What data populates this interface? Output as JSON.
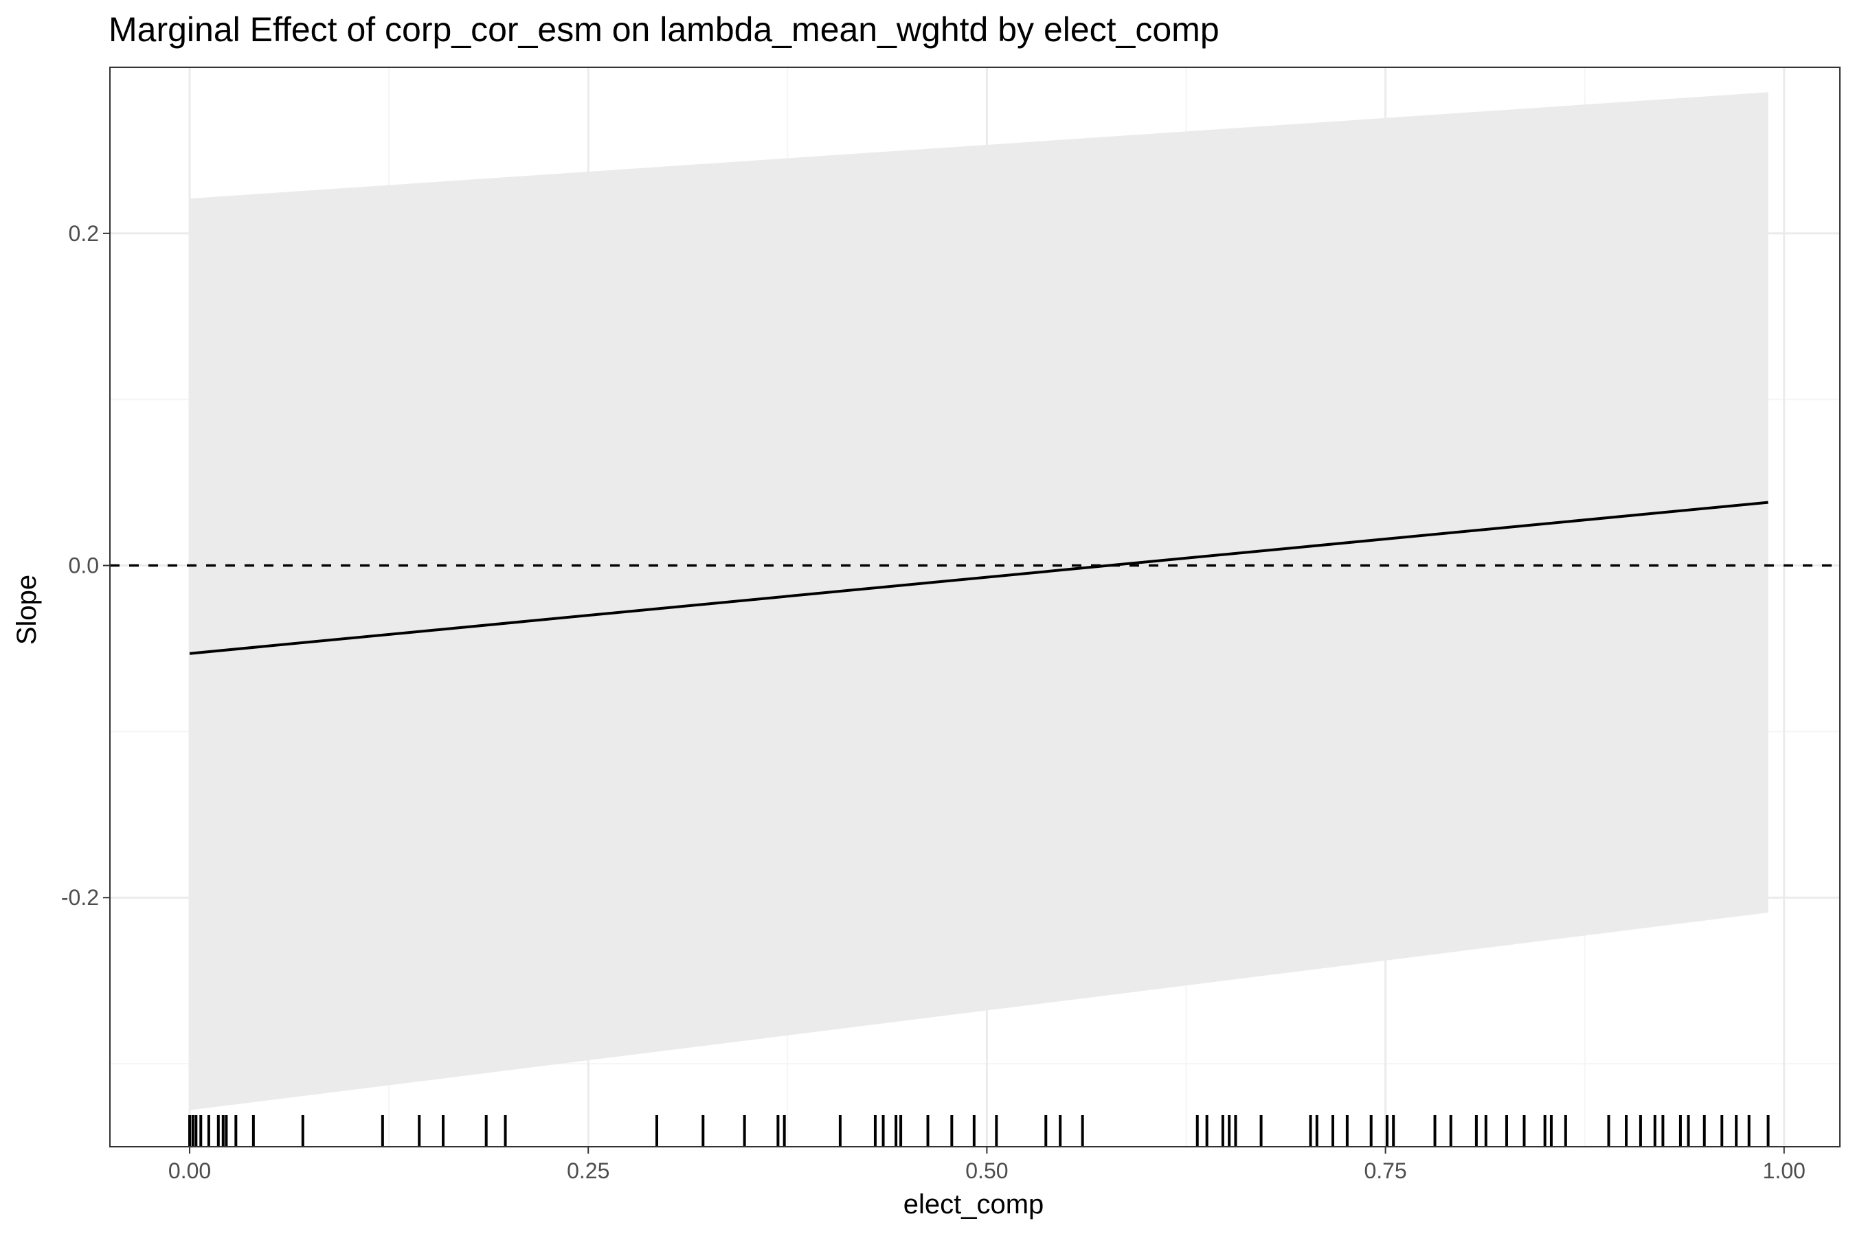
{
  "chart_data": {
    "type": "line",
    "title": "Marginal Effect of corp_cor_esm on lambda_mean_wghtd by elect_comp",
    "xlabel": "elect_comp",
    "ylabel": "Slope",
    "xlim": [
      -0.05,
      1.035
    ],
    "ylim": [
      -0.35,
      0.3
    ],
    "x_ticks": [
      0.0,
      0.25,
      0.5,
      0.75,
      1.0
    ],
    "x_tick_labels": [
      "0.00",
      "0.25",
      "0.50",
      "0.75",
      "1.00"
    ],
    "y_ticks": [
      -0.2,
      0.0,
      0.2
    ],
    "y_tick_labels": [
      "-0.2",
      "0.0",
      "0.2"
    ],
    "grid": true,
    "series": [
      {
        "x": [
          0.0,
          0.99
        ],
        "y": [
          -0.053,
          0.038
        ],
        "lower": [
          -0.328,
          -0.209
        ],
        "upper": [
          0.221,
          0.285
        ]
      }
    ],
    "reference_line": {
      "y": 0,
      "style": "dashed"
    },
    "rug_x": [
      0.0,
      0.002,
      0.004,
      0.007,
      0.012,
      0.018,
      0.021,
      0.023,
      0.029,
      0.04,
      0.071,
      0.121,
      0.144,
      0.159,
      0.186,
      0.198,
      0.293,
      0.322,
      0.348,
      0.369,
      0.373,
      0.408,
      0.43,
      0.435,
      0.443,
      0.446,
      0.463,
      0.478,
      0.492,
      0.506,
      0.537,
      0.546,
      0.56,
      0.632,
      0.638,
      0.648,
      0.652,
      0.656,
      0.672,
      0.703,
      0.707,
      0.717,
      0.726,
      0.741,
      0.751,
      0.755,
      0.781,
      0.791,
      0.807,
      0.813,
      0.826,
      0.837,
      0.85,
      0.854,
      0.863,
      0.89,
      0.901,
      0.91,
      0.919,
      0.924,
      0.935,
      0.94,
      0.95,
      0.961,
      0.97,
      0.978,
      0.99
    ],
    "colors": {
      "ribbon": "#ebebeb",
      "line": "#000000",
      "panel_border": "#333333",
      "grid_major": "#ebebeb",
      "grid_minor": "#f5f5f5",
      "tick_label": "#4d4d4d"
    }
  }
}
